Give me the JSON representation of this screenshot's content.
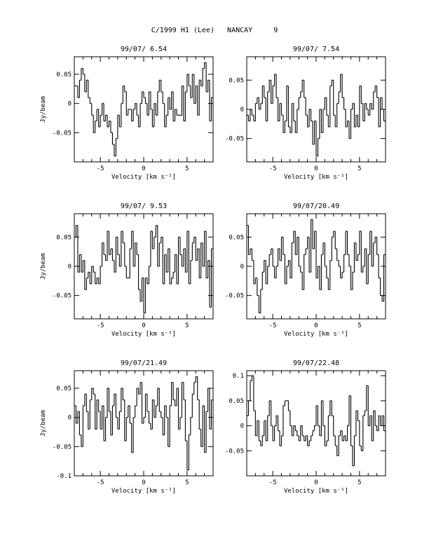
{
  "page": {
    "title": "C/1999 H1 (Lee)   NANCAY     9"
  },
  "chart_data": [
    {
      "type": "line",
      "title": "99/07/ 6.54",
      "xlabel": "Velocity [km s⁻¹]",
      "ylabel": "Jy/beam",
      "xlim": [
        -8,
        8
      ],
      "ylim": [
        -0.1,
        0.08
      ],
      "xticks": [
        -5,
        0,
        5
      ],
      "xtick_labels": [
        "-5",
        "0",
        "5"
      ],
      "yticks": [
        0.05,
        0,
        -0.05
      ],
      "ytick_labels": [
        "0.05",
        "0",
        "-0.05"
      ],
      "x": [
        -7.9,
        -7.7,
        -7.5,
        -7.3,
        -7.1,
        -6.9,
        -6.7,
        -6.5,
        -6.3,
        -6.1,
        -5.9,
        -5.7,
        -5.5,
        -5.3,
        -5.1,
        -4.9,
        -4.7,
        -4.5,
        -4.3,
        -4.1,
        -3.9,
        -3.7,
        -3.5,
        -3.3,
        -3.1,
        -2.9,
        -2.7,
        -2.5,
        -2.3,
        -2.1,
        -1.9,
        -1.7,
        -1.5,
        -1.3,
        -1.1,
        -0.9,
        -0.7,
        -0.5,
        -0.3,
        -0.1,
        0.1,
        0.3,
        0.5,
        0.7,
        0.9,
        1.1,
        1.3,
        1.5,
        1.7,
        1.9,
        2.1,
        2.3,
        2.5,
        2.7,
        2.9,
        3.1,
        3.3,
        3.5,
        3.7,
        3.9,
        4.1,
        4.3,
        4.5,
        4.7,
        4.9,
        5.1,
        5.3,
        5.5,
        5.7,
        5.9,
        6.1,
        6.3,
        6.5,
        6.7,
        6.9,
        7.1,
        7.3,
        7.5,
        7.7,
        7.9
      ],
      "values": [
        0.03,
        0.03,
        0.01,
        0.04,
        0.06,
        0.05,
        0.02,
        0.04,
        0.01,
        0.0,
        -0.02,
        -0.05,
        -0.03,
        -0.01,
        -0.04,
        -0.02,
        0.0,
        -0.03,
        -0.02,
        -0.04,
        -0.03,
        -0.05,
        -0.07,
        -0.09,
        -0.06,
        -0.02,
        -0.04,
        0.0,
        0.03,
        0.02,
        -0.02,
        -0.01,
        -0.01,
        -0.03,
        -0.01,
        0.0,
        -0.02,
        -0.04,
        0.0,
        0.02,
        0.01,
        0.0,
        -0.02,
        0.02,
        -0.01,
        -0.04,
        0.0,
        -0.02,
        0.02,
        0.04,
        0.02,
        0.0,
        -0.04,
        -0.02,
        0.01,
        -0.01,
        0.02,
        -0.03,
        -0.01,
        -0.02,
        -0.02,
        -0.02,
        0.03,
        -0.03,
        0.02,
        0.05,
        0.03,
        0.01,
        0.05,
        0.0,
        0.03,
        -0.02,
        0.04,
        0.03,
        0.06,
        0.07,
        0.02,
        0.04,
        -0.03,
        0.01
      ]
    },
    {
      "type": "line",
      "title": "99/07/ 7.54",
      "xlabel": "Velocity [km s⁻¹]",
      "ylabel": "",
      "xlim": [
        -8,
        8
      ],
      "ylim": [
        -0.09,
        0.09
      ],
      "xticks": [
        -5,
        0,
        5
      ],
      "xtick_labels": [
        "-5",
        "0",
        "5"
      ],
      "yticks": [
        0.05,
        0,
        -0.05
      ],
      "ytick_labels": [
        "0.05",
        "0",
        "-0.05"
      ],
      "x": [
        -7.9,
        -7.7,
        -7.5,
        -7.3,
        -7.1,
        -6.9,
        -6.7,
        -6.5,
        -6.3,
        -6.1,
        -5.9,
        -5.7,
        -5.5,
        -5.3,
        -5.1,
        -4.9,
        -4.7,
        -4.5,
        -4.3,
        -4.1,
        -3.9,
        -3.7,
        -3.5,
        -3.3,
        -3.1,
        -2.9,
        -2.7,
        -2.5,
        -2.3,
        -2.1,
        -1.9,
        -1.7,
        -1.5,
        -1.3,
        -1.1,
        -0.9,
        -0.7,
        -0.5,
        -0.3,
        -0.1,
        0.1,
        0.3,
        0.5,
        0.7,
        0.9,
        1.1,
        1.3,
        1.5,
        1.7,
        1.9,
        2.1,
        2.3,
        2.5,
        2.7,
        2.9,
        3.1,
        3.3,
        3.5,
        3.7,
        3.9,
        4.1,
        4.3,
        4.5,
        4.7,
        4.9,
        5.1,
        5.3,
        5.5,
        5.7,
        5.9,
        6.1,
        6.3,
        6.5,
        6.7,
        6.9,
        7.1,
        7.3,
        7.5,
        7.7,
        7.9
      ],
      "values": [
        -0.01,
        -0.02,
        0.0,
        -0.01,
        -0.02,
        0.01,
        0.02,
        0.0,
        0.01,
        0.04,
        0.02,
        -0.02,
        0.03,
        0.05,
        0.01,
        0.04,
        0.06,
        0.02,
        -0.02,
        0.01,
        -0.01,
        -0.04,
        -0.02,
        0.04,
        -0.03,
        -0.04,
        0.01,
        -0.02,
        -0.04,
        0.0,
        0.02,
        0.03,
        0.05,
        0.02,
        -0.01,
        -0.03,
        0.0,
        -0.02,
        -0.06,
        -0.02,
        -0.08,
        -0.05,
        0.0,
        -0.04,
        0.0,
        0.02,
        -0.01,
        -0.03,
        0.04,
        0.05,
        -0.01,
        -0.03,
        0.01,
        0.03,
        0.06,
        0.02,
        0.0,
        -0.03,
        -0.02,
        -0.05,
        0.0,
        0.01,
        -0.03,
        -0.01,
        -0.03,
        0.04,
        0.01,
        -0.02,
        0.01,
        0.0,
        -0.01,
        0.01,
        0.0,
        0.03,
        0.04,
        0.02,
        -0.03,
        0.02,
        0.0,
        -0.02
      ]
    },
    {
      "type": "line",
      "title": "99/07/ 9.53",
      "xlabel": "Velocity [km s⁻¹]",
      "ylabel": "Jy/beam",
      "xlim": [
        -8,
        8
      ],
      "ylim": [
        -0.09,
        0.09
      ],
      "xticks": [
        -5,
        0,
        5
      ],
      "xtick_labels": [
        "-5",
        "0",
        "5"
      ],
      "yticks": [
        0.05,
        0,
        -0.05
      ],
      "ytick_labels": [
        "0.05",
        "0",
        "-0.05"
      ],
      "x": [
        -7.9,
        -7.7,
        -7.5,
        -7.3,
        -7.1,
        -6.9,
        -6.7,
        -6.5,
        -6.3,
        -6.1,
        -5.9,
        -5.7,
        -5.5,
        -5.3,
        -5.1,
        -4.9,
        -4.7,
        -4.5,
        -4.3,
        -4.1,
        -3.9,
        -3.7,
        -3.5,
        -3.3,
        -3.1,
        -2.9,
        -2.7,
        -2.5,
        -2.3,
        -2.1,
        -1.9,
        -1.7,
        -1.5,
        -1.3,
        -1.1,
        -0.9,
        -0.7,
        -0.5,
        -0.3,
        -0.1,
        0.1,
        0.3,
        0.5,
        0.7,
        0.9,
        1.1,
        1.3,
        1.5,
        1.7,
        1.9,
        2.1,
        2.3,
        2.5,
        2.7,
        2.9,
        3.1,
        3.3,
        3.5,
        3.7,
        3.9,
        4.1,
        4.3,
        4.5,
        4.7,
        4.9,
        5.1,
        5.3,
        5.5,
        5.7,
        5.9,
        6.1,
        6.3,
        6.5,
        6.7,
        6.9,
        7.1,
        7.3,
        7.5,
        7.7,
        7.9
      ],
      "values": [
        0.05,
        0.07,
        -0.01,
        0.02,
        -0.01,
        0.01,
        -0.04,
        -0.02,
        -0.01,
        -0.03,
        0.0,
        -0.01,
        -0.03,
        -0.02,
        -0.03,
        0.0,
        0.04,
        0.02,
        0.01,
        0.06,
        0.02,
        0.03,
        0.01,
        -0.01,
        0.05,
        0.02,
        0.0,
        0.06,
        0.04,
        0.0,
        -0.02,
        -0.02,
        0.03,
        0.06,
        0.0,
        0.04,
        0.02,
        -0.04,
        -0.06,
        -0.02,
        -0.08,
        -0.02,
        -0.03,
        0.0,
        0.06,
        0.03,
        0.05,
        0.07,
        0.0,
        0.04,
        0.05,
        -0.03,
        0.02,
        -0.01,
        0.03,
        -0.03,
        -0.02,
        -0.01,
        0.02,
        -0.03,
        0.05,
        0.02,
        0.0,
        0.03,
        -0.01,
        0.06,
        -0.03,
        0.01,
        0.04,
        0.05,
        0.01,
        0.03,
        -0.02,
        0.04,
        0.0,
        0.06,
        -0.02,
        0.01,
        -0.07,
        0.03
      ]
    },
    {
      "type": "line",
      "title": "99/07/20.49",
      "xlabel": "Velocity [km s⁻¹]",
      "ylabel": "",
      "xlim": [
        -8,
        8
      ],
      "ylim": [
        -0.09,
        0.09
      ],
      "xticks": [
        -5,
        0,
        5
      ],
      "xtick_labels": [
        "-5",
        "0",
        "5"
      ],
      "yticks": [
        0.05,
        0,
        -0.05
      ],
      "ytick_labels": [
        "0.05",
        "0",
        "-0.05"
      ],
      "x": [
        -7.9,
        -7.7,
        -7.5,
        -7.3,
        -7.1,
        -6.9,
        -6.7,
        -6.5,
        -6.3,
        -6.1,
        -5.9,
        -5.7,
        -5.5,
        -5.3,
        -5.1,
        -4.9,
        -4.7,
        -4.5,
        -4.3,
        -4.1,
        -3.9,
        -3.7,
        -3.5,
        -3.3,
        -3.1,
        -2.9,
        -2.7,
        -2.5,
        -2.3,
        -2.1,
        -1.9,
        -1.7,
        -1.5,
        -1.3,
        -1.1,
        -0.9,
        -0.7,
        -0.5,
        -0.3,
        -0.1,
        0.1,
        0.3,
        0.5,
        0.7,
        0.9,
        1.1,
        1.3,
        1.5,
        1.7,
        1.9,
        2.1,
        2.3,
        2.5,
        2.7,
        2.9,
        3.1,
        3.3,
        3.5,
        3.7,
        3.9,
        4.1,
        4.3,
        4.5,
        4.7,
        4.9,
        5.1,
        5.3,
        5.5,
        5.7,
        5.9,
        6.1,
        6.3,
        6.5,
        6.7,
        6.9,
        7.1,
        7.3,
        7.5,
        7.7,
        7.9
      ],
      "values": [
        0.07,
        0.02,
        0.03,
        0.01,
        -0.03,
        -0.02,
        -0.05,
        -0.08,
        -0.04,
        -0.01,
        0.01,
        -0.03,
        0.0,
        0.02,
        0.03,
        0.0,
        -0.02,
        0.0,
        0.03,
        0.01,
        0.05,
        0.02,
        -0.03,
        0.0,
        0.01,
        -0.02,
        0.04,
        0.06,
        0.02,
        0.05,
        0.0,
        -0.01,
        -0.04,
        0.02,
        0.03,
        0.05,
        -0.01,
        0.08,
        0.03,
        0.06,
        -0.02,
        0.0,
        -0.04,
        0.02,
        0.04,
        0.0,
        -0.02,
        -0.04,
        0.01,
        0.05,
        0.06,
        0.03,
        0.01,
        0.0,
        -0.02,
        -0.01,
        0.02,
        0.06,
        0.02,
        0.0,
        -0.04,
        -0.01,
        0.04,
        0.01,
        0.02,
        0.06,
        -0.01,
        0.0,
        0.03,
        -0.03,
        0.02,
        0.06,
        0.0,
        0.04,
        0.05,
        0.02,
        -0.02,
        -0.05,
        -0.06,
        0.02
      ]
    },
    {
      "type": "line",
      "title": "99/07/21.49",
      "xlabel": "Velocity [km s⁻¹]",
      "ylabel": "Jy/beam",
      "xlim": [
        -8,
        8
      ],
      "ylim": [
        -0.1,
        0.08
      ],
      "xticks": [
        -5,
        0,
        5
      ],
      "xtick_labels": [
        "-5",
        "0",
        "5"
      ],
      "yticks": [
        0.05,
        0,
        -0.05,
        -0.1
      ],
      "ytick_labels": [
        "0.05",
        "0",
        "-0.05",
        "-0.1"
      ],
      "x": [
        -7.9,
        -7.7,
        -7.5,
        -7.3,
        -7.1,
        -6.9,
        -6.7,
        -6.5,
        -6.3,
        -6.1,
        -5.9,
        -5.7,
        -5.5,
        -5.3,
        -5.1,
        -4.9,
        -4.7,
        -4.5,
        -4.3,
        -4.1,
        -3.9,
        -3.7,
        -3.5,
        -3.3,
        -3.1,
        -2.9,
        -2.7,
        -2.5,
        -2.3,
        -2.1,
        -1.9,
        -1.7,
        -1.5,
        -1.3,
        -1.1,
        -0.9,
        -0.7,
        -0.5,
        -0.3,
        -0.1,
        0.1,
        0.3,
        0.5,
        0.7,
        0.9,
        1.1,
        1.3,
        1.5,
        1.7,
        1.9,
        2.1,
        2.3,
        2.5,
        2.7,
        2.9,
        3.1,
        3.3,
        3.5,
        3.7,
        3.9,
        4.1,
        4.3,
        4.5,
        4.7,
        4.9,
        5.1,
        5.3,
        5.5,
        5.7,
        5.9,
        6.1,
        6.3,
        6.5,
        6.7,
        6.9,
        7.1,
        7.3,
        7.5,
        7.7,
        7.9
      ],
      "values": [
        0.02,
        -0.01,
        0.01,
        -0.03,
        -0.05,
        0.02,
        0.04,
        0.01,
        -0.02,
        0.03,
        0.05,
        0.04,
        -0.02,
        0.03,
        0.01,
        -0.02,
        0.02,
        -0.04,
        0.0,
        0.05,
        0.01,
        -0.03,
        0.02,
        0.04,
        0.0,
        -0.02,
        0.01,
        0.05,
        0.03,
        -0.04,
        0.0,
        0.02,
        -0.01,
        -0.06,
        0.0,
        0.02,
        0.05,
        0.04,
        0.06,
        -0.01,
        0.0,
        0.04,
        0.01,
        -0.01,
        -0.02,
        0.03,
        0.0,
        0.02,
        0.05,
        0.01,
        0.0,
        -0.03,
        0.02,
        0.0,
        -0.05,
        0.02,
        0.06,
        0.03,
        0.02,
        0.05,
        -0.02,
        0.0,
        0.06,
        0.03,
        -0.04,
        -0.09,
        -0.03,
        0.0,
        0.04,
        0.06,
        0.07,
        0.03,
        -0.02,
        -0.05,
        0.02,
        -0.06,
        0.01,
        0.05,
        -0.02,
        0.03
      ]
    },
    {
      "type": "line",
      "title": "99/07/22.48",
      "xlabel": "Velocity [km s⁻¹]",
      "ylabel": "",
      "xlim": [
        -8,
        8
      ],
      "ylim": [
        -0.1,
        0.11
      ],
      "xticks": [
        -5,
        0,
        5
      ],
      "xtick_labels": [
        "-5",
        "0",
        "5"
      ],
      "yticks": [
        0.1,
        0.05,
        0,
        -0.05
      ],
      "ytick_labels": [
        "0.1",
        "0.05",
        "0",
        "-0.05"
      ],
      "x": [
        -7.9,
        -7.7,
        -7.5,
        -7.3,
        -7.1,
        -6.9,
        -6.7,
        -6.5,
        -6.3,
        -6.1,
        -5.9,
        -5.7,
        -5.5,
        -5.3,
        -5.1,
        -4.9,
        -4.7,
        -4.5,
        -4.3,
        -4.1,
        -3.9,
        -3.7,
        -3.5,
        -3.3,
        -3.1,
        -2.9,
        -2.7,
        -2.5,
        -2.3,
        -2.1,
        -1.9,
        -1.7,
        -1.5,
        -1.3,
        -1.1,
        -0.9,
        -0.7,
        -0.5,
        -0.3,
        -0.1,
        0.1,
        0.3,
        0.5,
        0.7,
        0.9,
        1.1,
        1.3,
        1.5,
        1.7,
        1.9,
        2.1,
        2.3,
        2.5,
        2.7,
        2.9,
        3.1,
        3.3,
        3.5,
        3.7,
        3.9,
        4.1,
        4.3,
        4.5,
        4.7,
        4.9,
        5.1,
        5.3,
        5.5,
        5.7,
        5.9,
        6.1,
        6.3,
        6.5,
        6.7,
        6.9,
        7.1,
        7.3,
        7.5,
        7.7,
        7.9
      ],
      "values": [
        0.02,
        0.05,
        0.09,
        0.1,
        0.03,
        -0.02,
        0.01,
        -0.03,
        -0.04,
        -0.02,
        0.01,
        -0.03,
        0.02,
        0.05,
        0.0,
        -0.03,
        0.0,
        0.02,
        -0.01,
        -0.04,
        -0.02,
        0.04,
        0.05,
        0.05,
        0.03,
        0.0,
        -0.02,
        0.0,
        -0.01,
        -0.02,
        -0.03,
        0.0,
        -0.02,
        -0.03,
        -0.02,
        -0.04,
        -0.03,
        -0.02,
        -0.01,
        0.0,
        0.04,
        0.0,
        -0.02,
        0.05,
        0.0,
        -0.04,
        -0.03,
        0.02,
        0.05,
        0.02,
        -0.02,
        -0.04,
        -0.06,
        -0.02,
        -0.01,
        -0.03,
        -0.02,
        -0.03,
        0.0,
        0.06,
        -0.04,
        -0.08,
        -0.02,
        0.03,
        0.01,
        -0.04,
        -0.05,
        0.02,
        0.03,
        0.08,
        0.0,
        0.02,
        -0.03,
        0.03,
        0.0,
        -0.01,
        0.02,
        0.0,
        0.02,
        -0.01
      ]
    }
  ]
}
